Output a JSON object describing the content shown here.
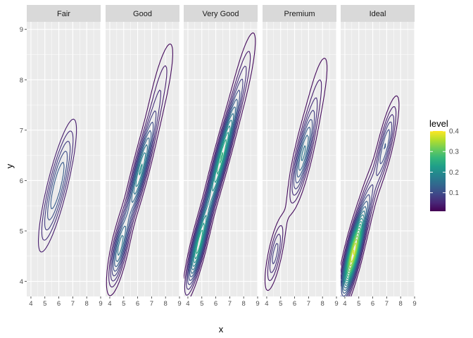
{
  "chart_data": {
    "type": "contour",
    "chart_kind": "2d density contours (faceted)",
    "xlabel": "x",
    "ylabel": "y",
    "xlim": [
      3.7,
      9.0
    ],
    "ylim": [
      3.7,
      9.15
    ],
    "x_ticks": [
      4,
      5,
      6,
      7,
      8,
      9
    ],
    "y_ticks": [
      4,
      5,
      6,
      7,
      8,
      9
    ],
    "grid": true,
    "facets": [
      {
        "label": "Fair",
        "slope": 0.96,
        "modes": [
          {
            "x": 5.9,
            "y": 5.9,
            "peak": 0.14,
            "su": 1.15,
            "sv": 0.34,
            "floor": 0.022
          }
        ]
      },
      {
        "label": "Good",
        "slope": 1.0,
        "modes": [
          {
            "x": 6.2,
            "y": 6.2,
            "peak": 0.2,
            "su": 0.9,
            "sv": 0.22,
            "floor": 0.02
          },
          {
            "x": 4.7,
            "y": 4.65,
            "peak": 0.16,
            "su": 0.6,
            "sv": 0.24,
            "floor": 0.02
          },
          {
            "x": 7.6,
            "y": 7.8,
            "peak": 0.05,
            "su": 0.9,
            "sv": 0.3,
            "floor": 0.02
          }
        ]
      },
      {
        "label": "Very Good",
        "slope": 1.0,
        "modes": [
          {
            "x": 6.4,
            "y": 6.45,
            "peak": 0.26,
            "su": 1.05,
            "sv": 0.2,
            "floor": 0.02
          },
          {
            "x": 4.75,
            "y": 4.7,
            "peak": 0.24,
            "su": 0.7,
            "sv": 0.2,
            "floor": 0.02
          },
          {
            "x": 7.9,
            "y": 8.0,
            "peak": 0.05,
            "su": 0.9,
            "sv": 0.28,
            "floor": 0.02
          }
        ]
      },
      {
        "label": "Premium",
        "slope": 1.02,
        "modes": [
          {
            "x": 6.6,
            "y": 6.5,
            "peak": 0.16,
            "su": 0.75,
            "sv": 0.25,
            "floor": 0.02
          },
          {
            "x": 4.6,
            "y": 4.55,
            "peak": 0.09,
            "su": 0.55,
            "sv": 0.22,
            "floor": 0.02
          },
          {
            "x": 7.6,
            "y": 7.7,
            "peak": 0.04,
            "su": 0.8,
            "sv": 0.3,
            "floor": 0.02
          }
        ]
      },
      {
        "label": "Ideal",
        "slope": 1.0,
        "modes": [
          {
            "x": 4.6,
            "y": 4.55,
            "peak": 0.38,
            "su": 0.7,
            "sv": 0.22,
            "floor": 0.02
          },
          {
            "x": 6.9,
            "y": 6.7,
            "peak": 0.12,
            "su": 0.7,
            "sv": 0.22,
            "floor": 0.02
          },
          {
            "x": 5.6,
            "y": 5.55,
            "peak": 0.07,
            "su": 0.6,
            "sv": 0.24,
            "floor": 0.02
          }
        ]
      }
    ],
    "contour_levels": [
      0.02,
      0.04,
      0.06,
      0.08,
      0.1,
      0.12,
      0.14,
      0.16,
      0.18,
      0.2,
      0.22,
      0.24,
      0.26,
      0.28,
      0.3,
      0.32,
      0.34,
      0.36,
      0.38
    ],
    "legend": {
      "title": "level",
      "position": "right",
      "range": [
        0.01,
        0.4
      ],
      "ticks": [
        0.1,
        0.2,
        0.3,
        0.4
      ],
      "tick_labels": [
        "0.1",
        "0.2",
        "0.3",
        "0.4"
      ],
      "palette": [
        "#440154",
        "#482878",
        "#3E4A89",
        "#31688E",
        "#26828E",
        "#1F9E89",
        "#35B779",
        "#6DCD59",
        "#B4DE2C",
        "#FDE725"
      ]
    },
    "colors": {
      "panel_bg": "#EBEBEB",
      "grid_major": "#FFFFFF",
      "strip_bg": "#D9D9D9",
      "text": "#1A1A1A",
      "tick_text": "#4D4D4D"
    }
  }
}
